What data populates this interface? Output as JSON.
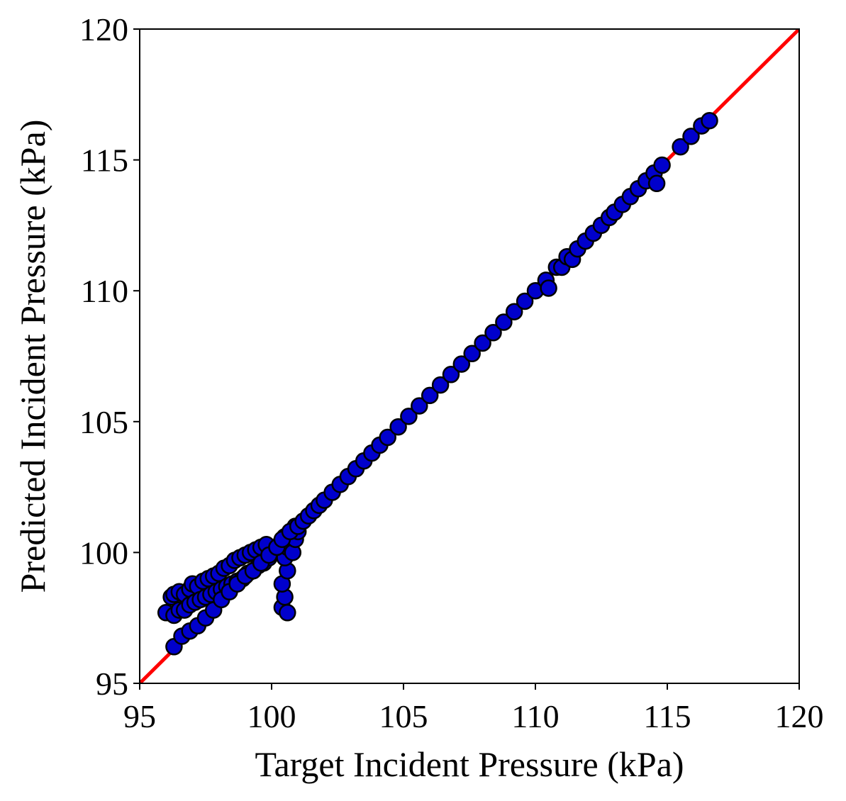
{
  "chart_data": {
    "type": "scatter",
    "title": "",
    "xlabel": "Target Incident Pressure (kPa)",
    "ylabel": "Predicted Incident Pressure (kPa)",
    "xlim": [
      95,
      120
    ],
    "ylim": [
      95,
      120
    ],
    "xticks": [
      "95",
      "100",
      "105",
      "110",
      "115",
      "120"
    ],
    "yticks": [
      "95",
      "100",
      "105",
      "110",
      "115",
      "120"
    ],
    "grid": false,
    "legend": "none",
    "reference_line": {
      "from": [
        95,
        95
      ],
      "to": [
        120,
        120
      ],
      "color": "#ff0000"
    },
    "marker_fill": "#0000cc",
    "marker_edge": "#000000",
    "points": {
      "x": [
        96.0,
        96.2,
        96.3,
        96.5,
        96.7,
        96.9,
        97.0,
        97.2,
        97.4,
        97.6,
        97.8,
        98.0,
        98.2,
        98.4,
        98.6,
        98.8,
        99.0,
        99.2,
        99.4,
        99.6,
        99.8,
        96.3,
        96.5,
        96.7,
        96.9,
        97.1,
        97.3,
        97.5,
        97.7,
        97.9,
        98.1,
        98.3,
        98.5,
        98.7,
        98.9,
        99.1,
        99.3,
        99.5,
        99.7,
        99.9,
        100.1,
        96.3,
        96.6,
        96.9,
        97.2,
        97.5,
        97.8,
        98.1,
        98.4,
        98.7,
        99.0,
        99.3,
        99.6,
        99.9,
        100.4,
        100.6,
        100.5,
        100.4,
        100.6,
        100.5,
        100.3,
        100.5,
        100.6,
        100.8,
        100.9,
        101.0,
        100.9,
        100.2,
        100.4,
        100.7,
        101.0,
        101.2,
        101.4,
        101.6,
        101.8,
        102.0,
        102.3,
        102.6,
        102.9,
        103.2,
        103.5,
        103.8,
        104.1,
        104.4,
        104.8,
        105.2,
        105.6,
        106.0,
        106.4,
        106.8,
        107.2,
        107.6,
        108.0,
        108.4,
        108.8,
        109.2,
        109.6,
        110.0,
        110.4,
        110.5,
        110.8,
        111.0,
        111.2,
        111.4,
        111.6,
        111.9,
        112.2,
        112.5,
        112.8,
        113.0,
        113.3,
        113.6,
        113.9,
        114.2,
        114.5,
        114.6,
        114.8,
        115.5,
        115.9,
        116.3,
        116.6
      ],
      "y": [
        97.7,
        98.3,
        98.4,
        98.5,
        98.4,
        98.6,
        98.8,
        98.7,
        98.9,
        99.0,
        99.1,
        99.2,
        99.4,
        99.5,
        99.7,
        99.8,
        99.9,
        100.0,
        100.1,
        100.2,
        100.3,
        97.6,
        97.8,
        97.8,
        98.0,
        98.1,
        98.2,
        98.3,
        98.4,
        98.5,
        98.6,
        98.7,
        98.8,
        98.9,
        99.0,
        99.2,
        99.3,
        99.5,
        99.6,
        99.8,
        100.0,
        96.4,
        96.8,
        97.0,
        97.2,
        97.5,
        97.8,
        98.2,
        98.5,
        98.8,
        99.1,
        99.3,
        99.6,
        99.9,
        97.9,
        97.7,
        98.3,
        98.8,
        99.3,
        99.8,
        100.3,
        100.6,
        100.2,
        100.0,
        100.5,
        100.8,
        101.0,
        100.2,
        100.5,
        100.8,
        101.0,
        101.2,
        101.4,
        101.6,
        101.8,
        102.0,
        102.3,
        102.6,
        102.9,
        103.2,
        103.5,
        103.8,
        104.1,
        104.4,
        104.8,
        105.2,
        105.6,
        106.0,
        106.4,
        106.8,
        107.2,
        107.6,
        108.0,
        108.4,
        108.8,
        109.2,
        109.6,
        110.0,
        110.4,
        110.1,
        110.9,
        110.9,
        111.3,
        111.2,
        111.6,
        111.9,
        112.2,
        112.5,
        112.8,
        113.0,
        113.3,
        113.6,
        113.9,
        114.2,
        114.5,
        114.1,
        114.8,
        115.5,
        115.9,
        116.3,
        116.5
      ]
    }
  }
}
